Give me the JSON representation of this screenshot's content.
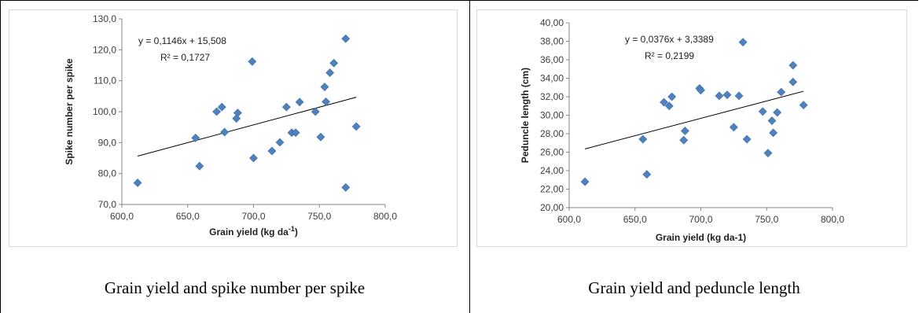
{
  "colors": {
    "marker": "#4f81bd",
    "trendline": "#000000",
    "axis": "#868686"
  },
  "chart_data": [
    {
      "type": "scatter",
      "caption": "Grain yield and spike number per spike",
      "xlabel": "Grain yield (kg da",
      "xlabel_sup": "-1",
      "xlabel_end": ")",
      "ylabel": "Spike number per spike",
      "xlim": [
        600,
        800
      ],
      "ylim": [
        70,
        130
      ],
      "xticks": [
        "600,0",
        "650,0",
        "700,0",
        "750,0",
        "800,0"
      ],
      "yticks": [
        "70,0",
        "80,0",
        "90,0",
        "100,0",
        "110,0",
        "120,0",
        "130,0"
      ],
      "equation": "y = 0,1146x + 15,508",
      "r2": "R² = 0,1727",
      "trendline": {
        "slope": 0.1146,
        "intercept": 15.508
      },
      "points": [
        [
          612,
          77.0
        ],
        [
          656,
          91.5
        ],
        [
          659,
          82.4
        ],
        [
          672,
          100.0
        ],
        [
          676,
          101.5
        ],
        [
          678,
          93.4
        ],
        [
          687,
          97.8
        ],
        [
          688,
          99.6
        ],
        [
          699,
          116.2
        ],
        [
          700,
          85.0
        ],
        [
          714,
          87.3
        ],
        [
          720,
          90.1
        ],
        [
          725,
          101.5
        ],
        [
          729,
          93.2
        ],
        [
          732,
          93.2
        ],
        [
          735,
          103.1
        ],
        [
          747,
          100.0
        ],
        [
          751,
          91.8
        ],
        [
          754,
          108.0
        ],
        [
          755,
          103.2
        ],
        [
          758,
          112.6
        ],
        [
          761,
          115.7
        ],
        [
          770,
          123.6
        ],
        [
          770,
          75.5
        ],
        [
          778,
          95.2
        ]
      ]
    },
    {
      "type": "scatter",
      "caption": "Grain yield and peduncle length",
      "xlabel": "Grain yield (kg da-1)",
      "ylabel": "Peduncle length (cm)",
      "xlim": [
        600,
        800
      ],
      "ylim": [
        20,
        40
      ],
      "xticks": [
        "600,0",
        "650,0",
        "700,0",
        "750,0",
        "800,0"
      ],
      "yticks": [
        "20,00",
        "22,00",
        "24,00",
        "26,00",
        "28,00",
        "30,00",
        "32,00",
        "34,00",
        "36,00",
        "38,00",
        "40,00"
      ],
      "equation": "y = 0,0376x + 3,3389",
      "r2": "R² = 0,2199",
      "trendline": {
        "slope": 0.0376,
        "intercept": 3.3389
      },
      "points": [
        [
          612,
          22.8
        ],
        [
          656,
          27.4
        ],
        [
          659,
          23.6
        ],
        [
          672,
          31.4
        ],
        [
          676,
          31.0
        ],
        [
          678,
          32.0
        ],
        [
          687,
          27.3
        ],
        [
          688,
          28.3
        ],
        [
          699,
          32.9
        ],
        [
          700,
          32.7
        ],
        [
          714,
          32.1
        ],
        [
          720,
          32.2
        ],
        [
          725,
          28.7
        ],
        [
          729,
          32.1
        ],
        [
          732,
          37.9
        ],
        [
          735,
          27.4
        ],
        [
          747,
          30.4
        ],
        [
          751,
          25.9
        ],
        [
          754,
          29.4
        ],
        [
          755,
          28.1
        ],
        [
          758,
          30.3
        ],
        [
          761,
          32.5
        ],
        [
          770,
          35.4
        ],
        [
          770,
          33.6
        ],
        [
          778,
          31.1
        ]
      ]
    }
  ]
}
